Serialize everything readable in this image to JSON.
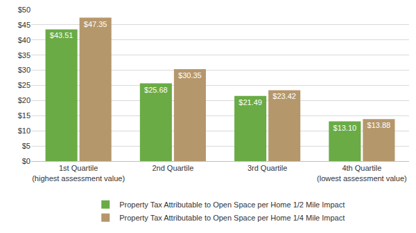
{
  "chart_data": {
    "type": "bar",
    "categories": [
      "1st Quartile (highest assessment value)",
      "2nd Quartile",
      "3rd Quartile",
      "4th Quartile (lowest assessment value)"
    ],
    "series": [
      {
        "name": "Property Tax Attributable to Open Space per Home 1/2 Mile Impact",
        "color": "#6aab45",
        "values": [
          43.51,
          25.68,
          21.49,
          13.1
        ],
        "value_labels": [
          "$43.51",
          "$25.68",
          "$21.49",
          "$13.10"
        ]
      },
      {
        "name": "Property Tax Attributable to Open Space per Home 1/4 Mile Impact",
        "color": "#b5976c",
        "values": [
          47.35,
          30.35,
          23.42,
          13.88
        ],
        "value_labels": [
          "$47.35",
          "$30.35",
          "$23.42",
          "$13.88"
        ]
      }
    ],
    "ylim": [
      0,
      50
    ],
    "yticks": [
      {
        "value": 0,
        "label": "$0"
      },
      {
        "value": 5,
        "label": "$5"
      },
      {
        "value": 10,
        "label": "$10"
      },
      {
        "value": 15,
        "label": "$15"
      },
      {
        "value": 20,
        "label": "$20"
      },
      {
        "value": 25,
        "label": "$25"
      },
      {
        "value": 30,
        "label": "$30"
      },
      {
        "value": 35,
        "label": "$35"
      },
      {
        "value": 40,
        "label": "$40"
      },
      {
        "value": 45,
        "label": "$45"
      },
      {
        "value": 50,
        "label": "$50"
      }
    ],
    "grid": true,
    "data_labels": true,
    "legend": "bottom"
  }
}
